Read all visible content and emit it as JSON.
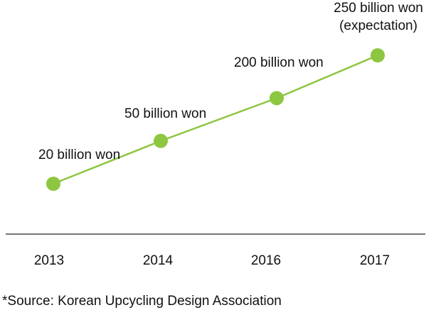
{
  "chart_data": {
    "type": "line",
    "categories": [
      "2013",
      "2014",
      "2016",
      "2017"
    ],
    "values": [
      20,
      50,
      200,
      250
    ],
    "data_labels": [
      [
        "20 billion won"
      ],
      [
        "50 billion won"
      ],
      [
        "200 billion won"
      ],
      [
        "250 billion won",
        "(expectation)"
      ]
    ],
    "series_color": "#8dc641",
    "marker_color": "#8dc641",
    "axis_color": "#777777",
    "grid": false,
    "source": "*Source: Korean Upcycling Design Association"
  }
}
